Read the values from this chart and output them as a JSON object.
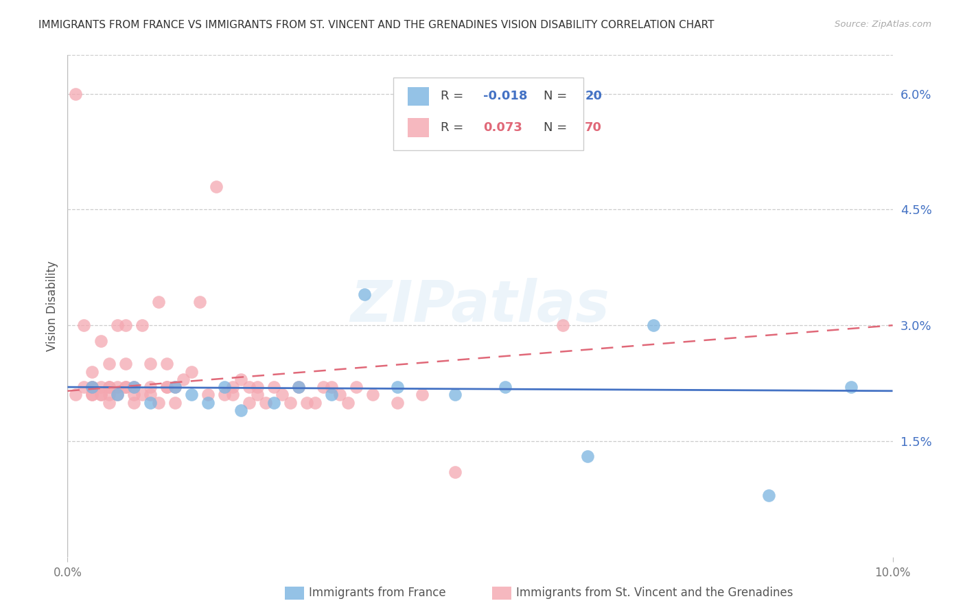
{
  "title": "IMMIGRANTS FROM FRANCE VS IMMIGRANTS FROM ST. VINCENT AND THE GRENADINES VISION DISABILITY CORRELATION CHART",
  "source": "Source: ZipAtlas.com",
  "ylabel": "Vision Disability",
  "xmin": 0.0,
  "xmax": 0.1,
  "ymin": 0.0,
  "ymax": 0.065,
  "yticks": [
    0.015,
    0.03,
    0.045,
    0.06
  ],
  "ytick_labels": [
    "1.5%",
    "3.0%",
    "4.5%",
    "6.0%"
  ],
  "france_color": "#7ab3e0",
  "svg_color": "#f4a7b0",
  "france_line_color": "#4472c4",
  "svg_line_color": "#e06878",
  "legend_label_france": "Immigrants from France",
  "legend_label_svg": "Immigrants from St. Vincent and the Grenadines",
  "watermark": "ZIPatlas",
  "france_x": [
    0.003,
    0.006,
    0.008,
    0.01,
    0.013,
    0.015,
    0.017,
    0.019,
    0.021,
    0.025,
    0.028,
    0.032,
    0.036,
    0.04,
    0.047,
    0.053,
    0.063,
    0.071,
    0.085,
    0.095
  ],
  "france_y": [
    0.022,
    0.021,
    0.022,
    0.02,
    0.022,
    0.021,
    0.02,
    0.022,
    0.019,
    0.02,
    0.022,
    0.021,
    0.034,
    0.022,
    0.021,
    0.022,
    0.013,
    0.03,
    0.008,
    0.022
  ],
  "svg_x": [
    0.001,
    0.001,
    0.002,
    0.002,
    0.003,
    0.003,
    0.003,
    0.003,
    0.003,
    0.004,
    0.004,
    0.004,
    0.004,
    0.005,
    0.005,
    0.005,
    0.005,
    0.005,
    0.006,
    0.006,
    0.006,
    0.007,
    0.007,
    0.007,
    0.007,
    0.008,
    0.008,
    0.008,
    0.009,
    0.009,
    0.01,
    0.01,
    0.01,
    0.011,
    0.011,
    0.012,
    0.012,
    0.012,
    0.013,
    0.013,
    0.014,
    0.015,
    0.016,
    0.017,
    0.018,
    0.019,
    0.02,
    0.02,
    0.021,
    0.022,
    0.022,
    0.023,
    0.023,
    0.024,
    0.025,
    0.026,
    0.027,
    0.028,
    0.029,
    0.03,
    0.031,
    0.032,
    0.033,
    0.034,
    0.035,
    0.037,
    0.04,
    0.043,
    0.047,
    0.06
  ],
  "svg_y": [
    0.06,
    0.021,
    0.022,
    0.03,
    0.024,
    0.022,
    0.021,
    0.022,
    0.021,
    0.021,
    0.022,
    0.028,
    0.021,
    0.022,
    0.025,
    0.021,
    0.02,
    0.022,
    0.03,
    0.022,
    0.021,
    0.03,
    0.022,
    0.025,
    0.022,
    0.022,
    0.021,
    0.02,
    0.03,
    0.021,
    0.022,
    0.025,
    0.021,
    0.033,
    0.02,
    0.022,
    0.025,
    0.022,
    0.02,
    0.022,
    0.023,
    0.024,
    0.033,
    0.021,
    0.048,
    0.021,
    0.021,
    0.022,
    0.023,
    0.022,
    0.02,
    0.022,
    0.021,
    0.02,
    0.022,
    0.021,
    0.02,
    0.022,
    0.02,
    0.02,
    0.022,
    0.022,
    0.021,
    0.02,
    0.022,
    0.021,
    0.02,
    0.021,
    0.011,
    0.03
  ]
}
